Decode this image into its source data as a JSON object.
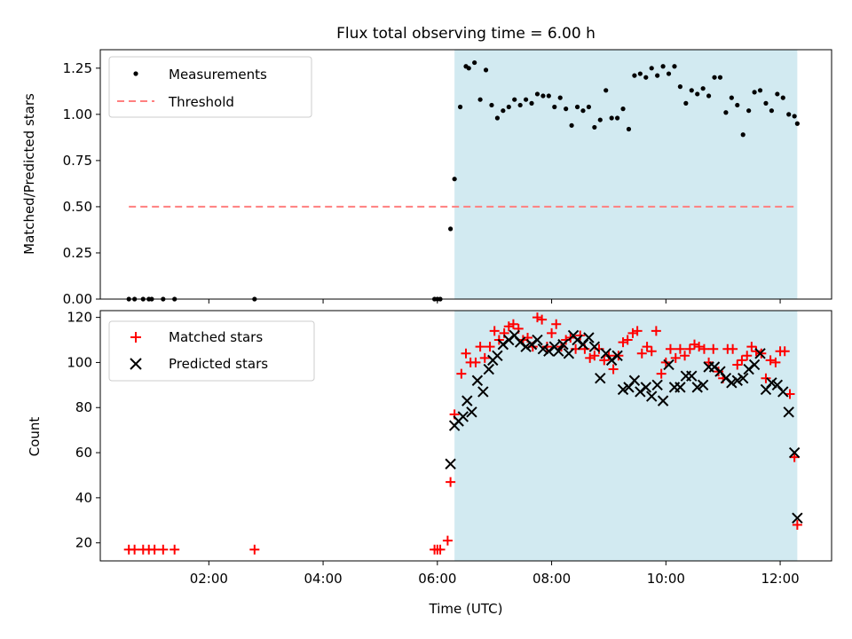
{
  "chart_data": [
    {
      "type": "scatter",
      "title": "Flux total observing time = 6.00 h",
      "ylabel": "Matched/Predicted stars",
      "xlabel": "",
      "xlim": [
        0.1,
        12.9
      ],
      "ylim": [
        0,
        1.35
      ],
      "yticks": [
        "0.00",
        "0.25",
        "0.50",
        "0.75",
        "1.00",
        "1.25"
      ],
      "ytick_values": [
        0,
        0.25,
        0.5,
        0.75,
        1.0,
        1.25
      ],
      "shaded_span": [
        6.3,
        12.3
      ],
      "legend": {
        "placement": "top-left",
        "entries": [
          "Measurements",
          "Threshold"
        ]
      },
      "threshold": {
        "name": "Threshold",
        "value": 0.5,
        "x_range": [
          0.6,
          12.3
        ],
        "color": "#ff7f7f",
        "style": "dashed"
      },
      "series": [
        {
          "name": "Measurements",
          "color": "#000000",
          "x": [
            0.6,
            0.7,
            0.85,
            0.95,
            1.0,
            1.2,
            1.4,
            2.8,
            5.95,
            6.0,
            6.05,
            6.23,
            6.3,
            6.4,
            6.5,
            6.55,
            6.65,
            6.75,
            6.85,
            6.95,
            7.05,
            7.15,
            7.25,
            7.35,
            7.45,
            7.55,
            7.65,
            7.75,
            7.85,
            7.95,
            8.05,
            8.15,
            8.25,
            8.35,
            8.45,
            8.55,
            8.65,
            8.75,
            8.85,
            8.95,
            9.05,
            9.15,
            9.25,
            9.35,
            9.45,
            9.55,
            9.65,
            9.75,
            9.85,
            9.95,
            10.05,
            10.15,
            10.25,
            10.35,
            10.45,
            10.55,
            10.65,
            10.75,
            10.85,
            10.95,
            11.05,
            11.15,
            11.25,
            11.35,
            11.45,
            11.55,
            11.65,
            11.75,
            11.85,
            11.95,
            12.05,
            12.15,
            12.25,
            12.3
          ],
          "y": [
            0,
            0,
            0,
            0,
            0,
            0,
            0,
            0,
            0,
            0,
            0,
            0.38,
            0.65,
            1.04,
            1.26,
            1.25,
            1.28,
            1.08,
            1.24,
            1.05,
            0.98,
            1.02,
            1.04,
            1.08,
            1.05,
            1.08,
            1.06,
            1.11,
            1.1,
            1.1,
            1.04,
            1.09,
            1.03,
            0.94,
            1.04,
            1.02,
            1.04,
            0.93,
            0.97,
            1.13,
            0.98,
            0.98,
            1.03,
            0.92,
            1.21,
            1.22,
            1.2,
            1.25,
            1.21,
            1.26,
            1.22,
            1.26,
            1.15,
            1.06,
            1.13,
            1.11,
            1.14,
            1.1,
            1.2,
            1.2,
            1.01,
            1.09,
            1.05,
            0.89,
            1.02,
            1.12,
            1.13,
            1.06,
            1.02,
            1.11,
            1.09,
            1.0,
            0.99,
            0.95
          ]
        }
      ]
    },
    {
      "type": "scatter",
      "title": "",
      "xlabel": "Time (UTC)",
      "ylabel": "Count",
      "xlim": [
        0.1,
        12.9
      ],
      "ylim": [
        12,
        123
      ],
      "xticks": [
        "02:00",
        "04:00",
        "06:00",
        "08:00",
        "10:00",
        "12:00"
      ],
      "xtick_values": [
        2,
        4,
        6,
        8,
        10,
        12
      ],
      "yticks": [
        "20",
        "40",
        "60",
        "80",
        "100",
        "120"
      ],
      "ytick_values": [
        20,
        40,
        60,
        80,
        100,
        120
      ],
      "shaded_span": [
        6.3,
        12.3
      ],
      "legend": {
        "placement": "top-left",
        "entries": [
          "Matched stars",
          "Predicted stars"
        ]
      },
      "series": [
        {
          "name": "Matched stars",
          "marker": "plus",
          "color": "#ff0000",
          "x": [
            0.6,
            0.7,
            0.85,
            0.95,
            1.05,
            1.2,
            1.4,
            2.8,
            5.95,
            6.0,
            6.05,
            6.18,
            6.23,
            6.3,
            6.42,
            6.5,
            6.58,
            6.67,
            6.75,
            6.83,
            6.92,
            7.0,
            7.08,
            7.17,
            7.25,
            7.33,
            7.42,
            7.5,
            7.58,
            7.67,
            7.75,
            7.83,
            7.92,
            8.0,
            8.08,
            8.17,
            8.25,
            8.33,
            8.42,
            8.5,
            8.58,
            8.67,
            8.75,
            8.83,
            8.92,
            9.0,
            9.08,
            9.17,
            9.25,
            9.33,
            9.42,
            9.5,
            9.58,
            9.67,
            9.75,
            9.83,
            9.92,
            10.0,
            10.08,
            10.17,
            10.25,
            10.33,
            10.42,
            10.5,
            10.58,
            10.67,
            10.75,
            10.83,
            10.92,
            11.0,
            11.08,
            11.17,
            11.25,
            11.33,
            11.42,
            11.5,
            11.58,
            11.67,
            11.75,
            11.83,
            11.92,
            12.0,
            12.08,
            12.17,
            12.25,
            12.3
          ],
          "y": [
            17,
            17,
            17,
            17,
            17,
            17,
            17,
            17,
            17,
            17,
            17,
            21,
            47,
            77,
            95,
            104,
            100,
            100,
            107,
            102,
            107,
            114,
            110,
            113,
            116,
            117,
            115,
            110,
            111,
            107,
            120,
            119,
            107,
            113,
            117,
            107,
            110,
            111,
            106,
            112,
            106,
            102,
            103,
            106,
            101,
            103,
            97,
            103,
            109,
            110,
            113,
            114,
            104,
            107,
            105,
            114,
            95,
            100,
            106,
            102,
            106,
            103,
            106,
            108,
            107,
            106,
            100,
            106,
            96,
            93,
            106,
            106,
            99,
            101,
            103,
            107,
            105,
            104,
            93,
            101,
            100,
            105,
            105,
            86,
            58,
            28
          ]
        },
        {
          "name": "Predicted stars",
          "marker": "x",
          "color": "#000000",
          "x": [
            6.23,
            6.3,
            6.37,
            6.45,
            6.52,
            6.6,
            6.7,
            6.8,
            6.9,
            6.97,
            7.05,
            7.15,
            7.25,
            7.35,
            7.45,
            7.55,
            7.65,
            7.75,
            7.85,
            7.95,
            8.05,
            8.12,
            8.2,
            8.3,
            8.38,
            8.45,
            8.55,
            8.65,
            8.75,
            8.85,
            8.95,
            9.05,
            9.15,
            9.25,
            9.35,
            9.45,
            9.55,
            9.65,
            9.75,
            9.85,
            9.95,
            10.05,
            10.15,
            10.25,
            10.35,
            10.45,
            10.55,
            10.65,
            10.75,
            10.85,
            10.95,
            11.05,
            11.15,
            11.25,
            11.35,
            11.45,
            11.55,
            11.65,
            11.75,
            11.85,
            11.95,
            12.05,
            12.15,
            12.25,
            12.3
          ],
          "y": [
            55,
            72,
            74,
            76,
            83,
            78,
            92,
            87,
            97,
            101,
            103,
            108,
            110,
            112,
            109,
            107,
            108,
            110,
            106,
            105,
            107,
            105,
            108,
            104,
            112,
            110,
            108,
            111,
            107,
            93,
            104,
            101,
            103,
            88,
            89,
            92,
            87,
            89,
            85,
            90,
            83,
            99,
            89,
            89,
            94,
            94,
            89,
            90,
            98,
            98,
            96,
            93,
            91,
            92,
            93,
            97,
            99,
            104,
            88,
            91,
            90,
            87,
            78,
            60,
            31
          ]
        }
      ]
    }
  ]
}
